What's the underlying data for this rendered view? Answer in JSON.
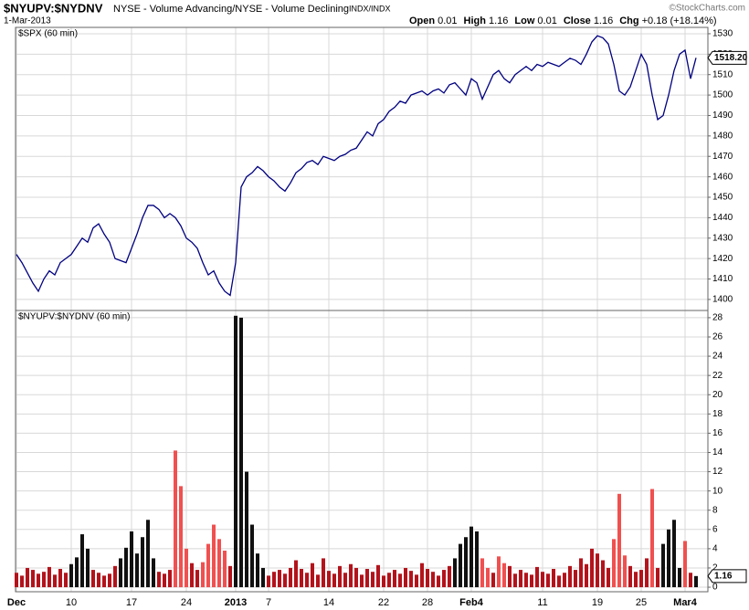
{
  "header": {
    "symbol": "$NYUPV:$NYDNV",
    "description": "NYSE - Volume Advancing/NYSE - Volume Declining",
    "exchange": "INDX/INDX",
    "date": "1-Mar-2013",
    "quote": [
      {
        "label": "Open",
        "value": "0.01"
      },
      {
        "label": "High",
        "value": "1.16"
      },
      {
        "label": "Low",
        "value": "0.01"
      },
      {
        "label": "Close",
        "value": "1.16"
      },
      {
        "label": "Chg",
        "value": "+0.18 (+18.14%)"
      }
    ],
    "watermark": "©StockCharts.com"
  },
  "chart_data": [
    {
      "type": "line",
      "series": [
        {
          "name": "$SPX (60 min)",
          "color": "#000080",
          "values": [
            1422,
            1418,
            1413,
            1408,
            1404,
            1410,
            1414,
            1412,
            1418,
            1420,
            1422,
            1426,
            1430,
            1428,
            1435,
            1437,
            1432,
            1428,
            1420,
            1419,
            1418,
            1425,
            1432,
            1440,
            1446,
            1446,
            1444,
            1440,
            1442,
            1440,
            1436,
            1430,
            1428,
            1425,
            1418,
            1412,
            1414,
            1408,
            1404,
            1402,
            1418,
            1455,
            1460,
            1462,
            1465,
            1463,
            1460,
            1458,
            1455,
            1453,
            1457,
            1462,
            1464,
            1467,
            1468,
            1466,
            1470,
            1469,
            1468,
            1470,
            1471,
            1473,
            1474,
            1478,
            1482,
            1480,
            1486,
            1488,
            1492,
            1494,
            1497,
            1496,
            1500,
            1501,
            1502,
            1500,
            1502,
            1503,
            1501,
            1505,
            1506,
            1503,
            1500,
            1508,
            1506,
            1498,
            1504,
            1510,
            1512,
            1508,
            1506,
            1510,
            1512,
            1514,
            1512,
            1515,
            1514,
            1516,
            1515,
            1514,
            1516,
            1518,
            1517,
            1515,
            1520,
            1526,
            1529,
            1528,
            1525,
            1515,
            1502,
            1500,
            1504,
            1512,
            1520,
            1515,
            1500,
            1488,
            1490,
            1500,
            1512,
            1520,
            1522,
            1508,
            1518.2
          ],
          "last_label": "1518.20"
        }
      ],
      "ylim": [
        1394.6,
        1533.1
      ],
      "yticks": [
        1400,
        1410,
        1420,
        1430,
        1440,
        1450,
        1460,
        1470,
        1480,
        1490,
        1500,
        1510,
        1520,
        1530
      ],
      "grid": true
    },
    {
      "type": "bar",
      "series": [
        {
          "name": "$NYUPV:$NYDNV (60 min)",
          "values": [
            1.5,
            1.2,
            2.0,
            1.8,
            1.4,
            1.6,
            2.1,
            1.3,
            1.9,
            1.5,
            2.4,
            3.1,
            5.5,
            4.0,
            1.8,
            1.5,
            1.2,
            1.4,
            2.2,
            3.0,
            4.1,
            5.8,
            3.5,
            5.2,
            7.0,
            3.0,
            1.6,
            1.4,
            1.8,
            14.2,
            10.5,
            4.0,
            2.5,
            1.8,
            2.6,
            4.5,
            6.5,
            5.0,
            3.8,
            2.2,
            28.2,
            28.0,
            12.0,
            6.5,
            3.5,
            2.0,
            1.2,
            1.6,
            1.8,
            1.4,
            2.0,
            2.8,
            1.9,
            1.5,
            2.5,
            1.3,
            3.0,
            1.7,
            1.4,
            2.2,
            1.5,
            2.4,
            2.0,
            1.3,
            1.9,
            1.6,
            2.3,
            1.2,
            1.5,
            1.8,
            1.4,
            2.0,
            1.7,
            1.3,
            2.5,
            1.9,
            1.6,
            1.2,
            1.8,
            2.2,
            3.0,
            4.5,
            5.2,
            6.3,
            5.8,
            3.0,
            2.0,
            1.5,
            3.2,
            2.5,
            2.2,
            1.4,
            1.8,
            1.5,
            1.3,
            2.1,
            1.6,
            1.4,
            1.9,
            1.2,
            1.5,
            2.2,
            1.8,
            3.0,
            2.4,
            4.0,
            3.5,
            2.8,
            2.0,
            5.0,
            9.7,
            3.3,
            2.2,
            1.6,
            1.8,
            3.0,
            10.2,
            2.0,
            4.5,
            6.0,
            7.0,
            2.0,
            4.8,
            1.5,
            1.16
          ],
          "colors": [
            "#b3131b",
            "#b3131b",
            "#b3131b",
            "#b3131b",
            "#b3131b",
            "#b3131b",
            "#b3131b",
            "#b3131b",
            "#b3131b",
            "#b3131b",
            "#111111",
            "#111111",
            "#111111",
            "#111111",
            "#b3131b",
            "#b3131b",
            "#b3131b",
            "#b3131b",
            "#b3131b",
            "#111111",
            "#111111",
            "#111111",
            "#111111",
            "#111111",
            "#111111",
            "#111111",
            "#b3131b",
            "#b3131b",
            "#b3131b",
            "#f05050",
            "#f05050",
            "#f05050",
            "#b3131b",
            "#b3131b",
            "#f05050",
            "#f05050",
            "#f05050",
            "#f05050",
            "#f05050",
            "#b3131b",
            "#111111",
            "#111111",
            "#111111",
            "#111111",
            "#111111",
            "#111111",
            "#b3131b",
            "#b3131b",
            "#b3131b",
            "#b3131b",
            "#b3131b",
            "#b3131b",
            "#b3131b",
            "#b3131b",
            "#b3131b",
            "#b3131b",
            "#b3131b",
            "#b3131b",
            "#b3131b",
            "#b3131b",
            "#b3131b",
            "#b3131b",
            "#b3131b",
            "#b3131b",
            "#b3131b",
            "#b3131b",
            "#b3131b",
            "#b3131b",
            "#b3131b",
            "#b3131b",
            "#b3131b",
            "#b3131b",
            "#b3131b",
            "#b3131b",
            "#b3131b",
            "#b3131b",
            "#b3131b",
            "#b3131b",
            "#b3131b",
            "#b3131b",
            "#111111",
            "#111111",
            "#111111",
            "#111111",
            "#111111",
            "#f05050",
            "#f05050",
            "#b3131b",
            "#f05050",
            "#f05050",
            "#b3131b",
            "#b3131b",
            "#b3131b",
            "#b3131b",
            "#b3131b",
            "#b3131b",
            "#b3131b",
            "#b3131b",
            "#b3131b",
            "#b3131b",
            "#b3131b",
            "#b3131b",
            "#b3131b",
            "#b3131b",
            "#b3131b",
            "#b3131b",
            "#b3131b",
            "#b3131b",
            "#b3131b",
            "#f05050",
            "#f05050",
            "#f05050",
            "#b3131b",
            "#b3131b",
            "#b3131b",
            "#b3131b",
            "#f05050",
            "#b3131b",
            "#111111",
            "#111111",
            "#111111",
            "#111111",
            "#f05050",
            "#b3131b",
            "#111111"
          ],
          "last_label": "1.16"
        }
      ],
      "categories": [
        "Dec",
        null,
        null,
        null,
        null,
        null,
        null,
        null,
        null,
        null,
        "10",
        null,
        null,
        null,
        null,
        null,
        null,
        null,
        null,
        null,
        null,
        "17",
        null,
        null,
        null,
        null,
        null,
        null,
        null,
        null,
        null,
        "24",
        null,
        null,
        null,
        null,
        null,
        null,
        null,
        null,
        "2013",
        null,
        null,
        null,
        null,
        null,
        "7",
        null,
        null,
        null,
        null,
        null,
        null,
        null,
        null,
        null,
        null,
        "14",
        null,
        null,
        null,
        null,
        null,
        null,
        null,
        null,
        null,
        "22",
        null,
        null,
        null,
        null,
        null,
        null,
        null,
        "28",
        null,
        null,
        null,
        null,
        null,
        null,
        null,
        "Feb4",
        null,
        null,
        null,
        null,
        null,
        null,
        null,
        null,
        null,
        null,
        null,
        null,
        "11",
        null,
        null,
        null,
        null,
        null,
        null,
        null,
        null,
        null,
        "19",
        null,
        null,
        null,
        null,
        null,
        null,
        null,
        "25",
        null,
        null,
        null,
        null,
        null,
        null,
        null,
        "Mar4",
        null,
        null
      ],
      "ylim": [
        -0.47,
        28.75
      ],
      "yticks": [
        0,
        2,
        4,
        6,
        8,
        10,
        12,
        14,
        16,
        18,
        20,
        22,
        24,
        26,
        28
      ],
      "grid": true
    }
  ]
}
